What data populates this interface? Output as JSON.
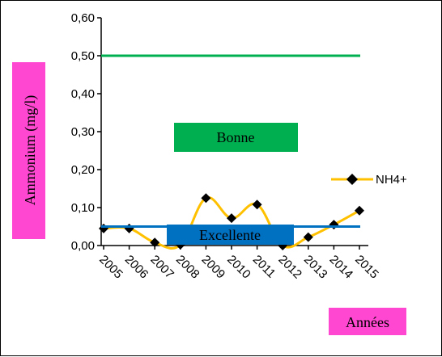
{
  "chart_data": {
    "type": "line",
    "ylabel": "Ammonium (mg/l)",
    "xlabel": "Années",
    "ylim": [
      0,
      0.6
    ],
    "yticks": [
      "0,00",
      "0,10",
      "0,20",
      "0,30",
      "0,40",
      "0,50",
      "0,60"
    ],
    "categories": [
      "2005",
      "2006",
      "2007",
      "2008",
      "2009",
      "2010",
      "2011",
      "2012",
      "2013",
      "2014",
      "2015"
    ],
    "series": [
      {
        "name": "NH4+",
        "color": "#FFC000",
        "marker": "diamond",
        "values": [
          0.045,
          0.045,
          0.008,
          0.002,
          0.125,
          0.072,
          0.108,
          0.0,
          0.022,
          0.055,
          0.092
        ]
      }
    ],
    "thresholds": [
      {
        "label": "Bonne",
        "value": 0.5,
        "color": "#00B050"
      },
      {
        "label": "Excellente",
        "value": 0.05,
        "color": "#0070C0"
      }
    ],
    "legend_position": "right",
    "grid": false
  }
}
